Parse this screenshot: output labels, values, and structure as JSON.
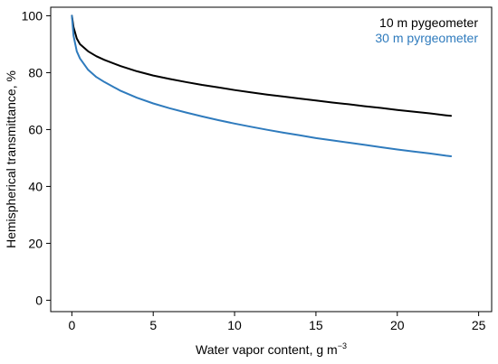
{
  "chart_data": {
    "type": "line",
    "xlabel": "Water vapor content, g m",
    "xlabel_exp": "−3",
    "ylabel": "Hemispherical transmittance, %",
    "xlim": [
      -1.3,
      25.8
    ],
    "ylim": [
      -4,
      103
    ],
    "xticks": [
      0,
      5,
      10,
      15,
      20,
      25
    ],
    "yticks": [
      0,
      20,
      40,
      60,
      80,
      100
    ],
    "legend": "top-right",
    "grid": false,
    "series": [
      {
        "name": "10 m pygeometer",
        "color": "#000000",
        "x": [
          0,
          0.1,
          0.3,
          0.5,
          1,
          1.5,
          2,
          3,
          4,
          5,
          6,
          7,
          8,
          9,
          10,
          11,
          12,
          13,
          14,
          15,
          16,
          17,
          18,
          19,
          20,
          21,
          22,
          23,
          23.3
        ],
        "y": [
          100,
          96,
          92,
          90,
          87.5,
          85.8,
          84.5,
          82.3,
          80.5,
          79,
          77.8,
          76.7,
          75.7,
          74.8,
          73.9,
          73.1,
          72.3,
          71.6,
          70.9,
          70.2,
          69.5,
          68.9,
          68.2,
          67.6,
          66.9,
          66.3,
          65.7,
          65,
          64.8
        ]
      },
      {
        "name": "30 m pyrgeometer",
        "color": "#2f7bbd",
        "x": [
          0,
          0.1,
          0.3,
          0.5,
          1,
          1.5,
          2,
          3,
          4,
          5,
          6,
          7,
          8,
          9,
          10,
          11,
          12,
          13,
          14,
          15,
          16,
          17,
          18,
          19,
          20,
          21,
          22,
          23,
          23.3
        ],
        "y": [
          100,
          93,
          87.5,
          85,
          81,
          78.5,
          76.7,
          73.6,
          71.2,
          69.2,
          67.5,
          66,
          64.6,
          63.3,
          62.1,
          61,
          59.9,
          58.9,
          58,
          57,
          56.2,
          55.4,
          54.6,
          53.8,
          53,
          52.3,
          51.6,
          50.8,
          50.6
        ]
      }
    ]
  }
}
